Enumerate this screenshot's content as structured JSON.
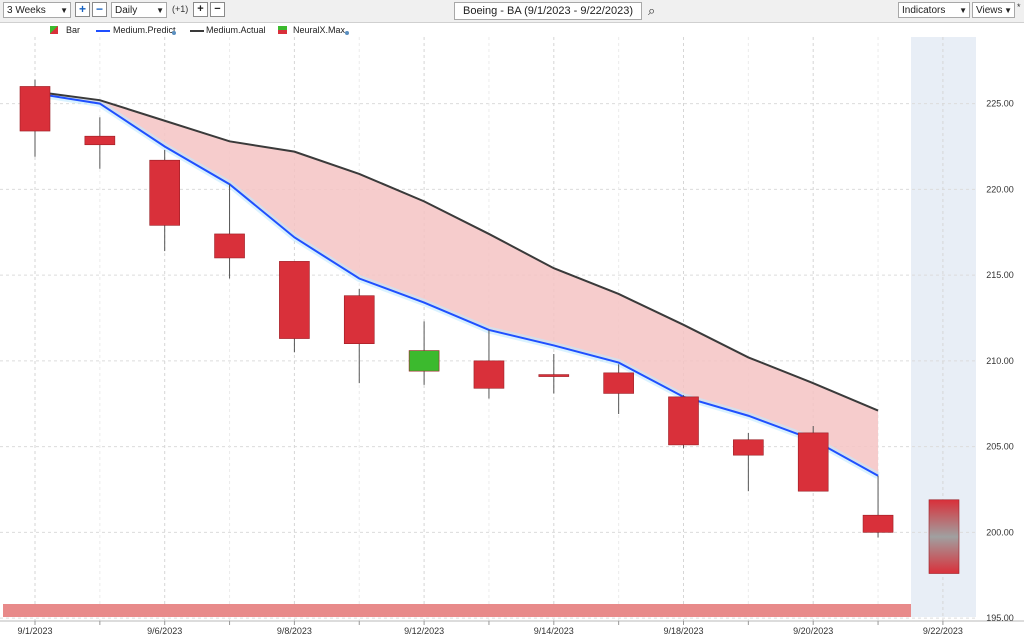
{
  "toolbar": {
    "range": "3 Weeks",
    "interval": "Daily",
    "offset": "(+1)",
    "title": "Boeing - BA (9/1/2023 - 9/22/2023)",
    "indicators": "Indicators",
    "views": "Views",
    "asterisk": "*"
  },
  "legend": {
    "bar": "Bar",
    "predict": "Medium.Predict",
    "actual": "Medium.Actual",
    "neuralx": "NeuralX.Max"
  },
  "colors": {
    "up": "#3cba2e",
    "down": "#d9303a",
    "predict": "#1f4fff",
    "actual": "#3a3a3a",
    "band": "#f4c3c3",
    "forecast_bg": "#e8eef6",
    "bottom_band": "#e88a8a"
  },
  "chart_data": {
    "type": "candlestick",
    "title": "Boeing - BA (9/1/2023 - 9/22/2023)",
    "y_range": [
      195,
      228
    ],
    "y_ticks": [
      "225.00",
      "220.00",
      "215.00",
      "210.00",
      "205.00",
      "200.00",
      "195.00"
    ],
    "x_labels": [
      "9/1/2023",
      "9/6/2023",
      "9/8/2023",
      "9/12/2023",
      "9/14/2023",
      "9/18/2023",
      "9/20/2023",
      "9/22/2023"
    ],
    "x_label_index": [
      0,
      2,
      4,
      6,
      8,
      10,
      12,
      14
    ],
    "candles": [
      {
        "date": "9/1/2023",
        "open": 226.0,
        "high": 226.4,
        "low": 221.9,
        "close": 223.4
      },
      {
        "date": "9/5/2023",
        "open": 223.1,
        "high": 224.2,
        "low": 221.2,
        "close": 222.6
      },
      {
        "date": "9/6/2023",
        "open": 221.7,
        "high": 222.3,
        "low": 216.4,
        "close": 217.9
      },
      {
        "date": "9/7/2023",
        "open": 217.4,
        "high": 220.3,
        "low": 214.8,
        "close": 216.0
      },
      {
        "date": "9/8/2023",
        "open": 215.8,
        "high": 215.8,
        "low": 210.5,
        "close": 211.3
      },
      {
        "date": "9/11/2023",
        "open": 213.8,
        "high": 214.2,
        "low": 208.7,
        "close": 211.0
      },
      {
        "date": "9/12/2023",
        "open": 209.4,
        "high": 212.3,
        "low": 208.6,
        "close": 210.6
      },
      {
        "date": "9/13/2023",
        "open": 210.0,
        "high": 211.8,
        "low": 207.8,
        "close": 208.4
      },
      {
        "date": "9/14/2023",
        "open": 209.2,
        "high": 210.4,
        "low": 208.1,
        "close": 209.1
      },
      {
        "date": "9/15/2023",
        "open": 209.3,
        "high": 209.8,
        "low": 206.9,
        "close": 208.1
      },
      {
        "date": "9/18/2023",
        "open": 207.9,
        "high": 208.0,
        "low": 204.9,
        "close": 205.1
      },
      {
        "date": "9/19/2023",
        "open": 205.4,
        "high": 205.8,
        "low": 202.4,
        "close": 204.5
      },
      {
        "date": "9/20/2023",
        "open": 205.8,
        "high": 206.2,
        "low": 202.4,
        "close": 202.4
      },
      {
        "date": "9/21/2023",
        "open": 201.0,
        "high": 203.3,
        "low": 199.7,
        "close": 200.0
      }
    ],
    "forecast": {
      "date": "9/22/2023",
      "high": 201.9,
      "low": 197.6
    },
    "series": [
      {
        "name": "Medium.Predict",
        "values": [
          225.6,
          225.0,
          222.5,
          220.3,
          217.2,
          214.8,
          213.4,
          211.8,
          210.9,
          209.9,
          207.9,
          206.8,
          205.4,
          203.3
        ]
      },
      {
        "name": "Medium.Actual",
        "values": [
          225.7,
          225.2,
          224.0,
          222.8,
          222.2,
          220.9,
          219.3,
          217.4,
          215.4,
          213.9,
          212.1,
          210.2,
          208.7,
          207.1
        ]
      }
    ],
    "neuralx_max": "bottom band"
  }
}
